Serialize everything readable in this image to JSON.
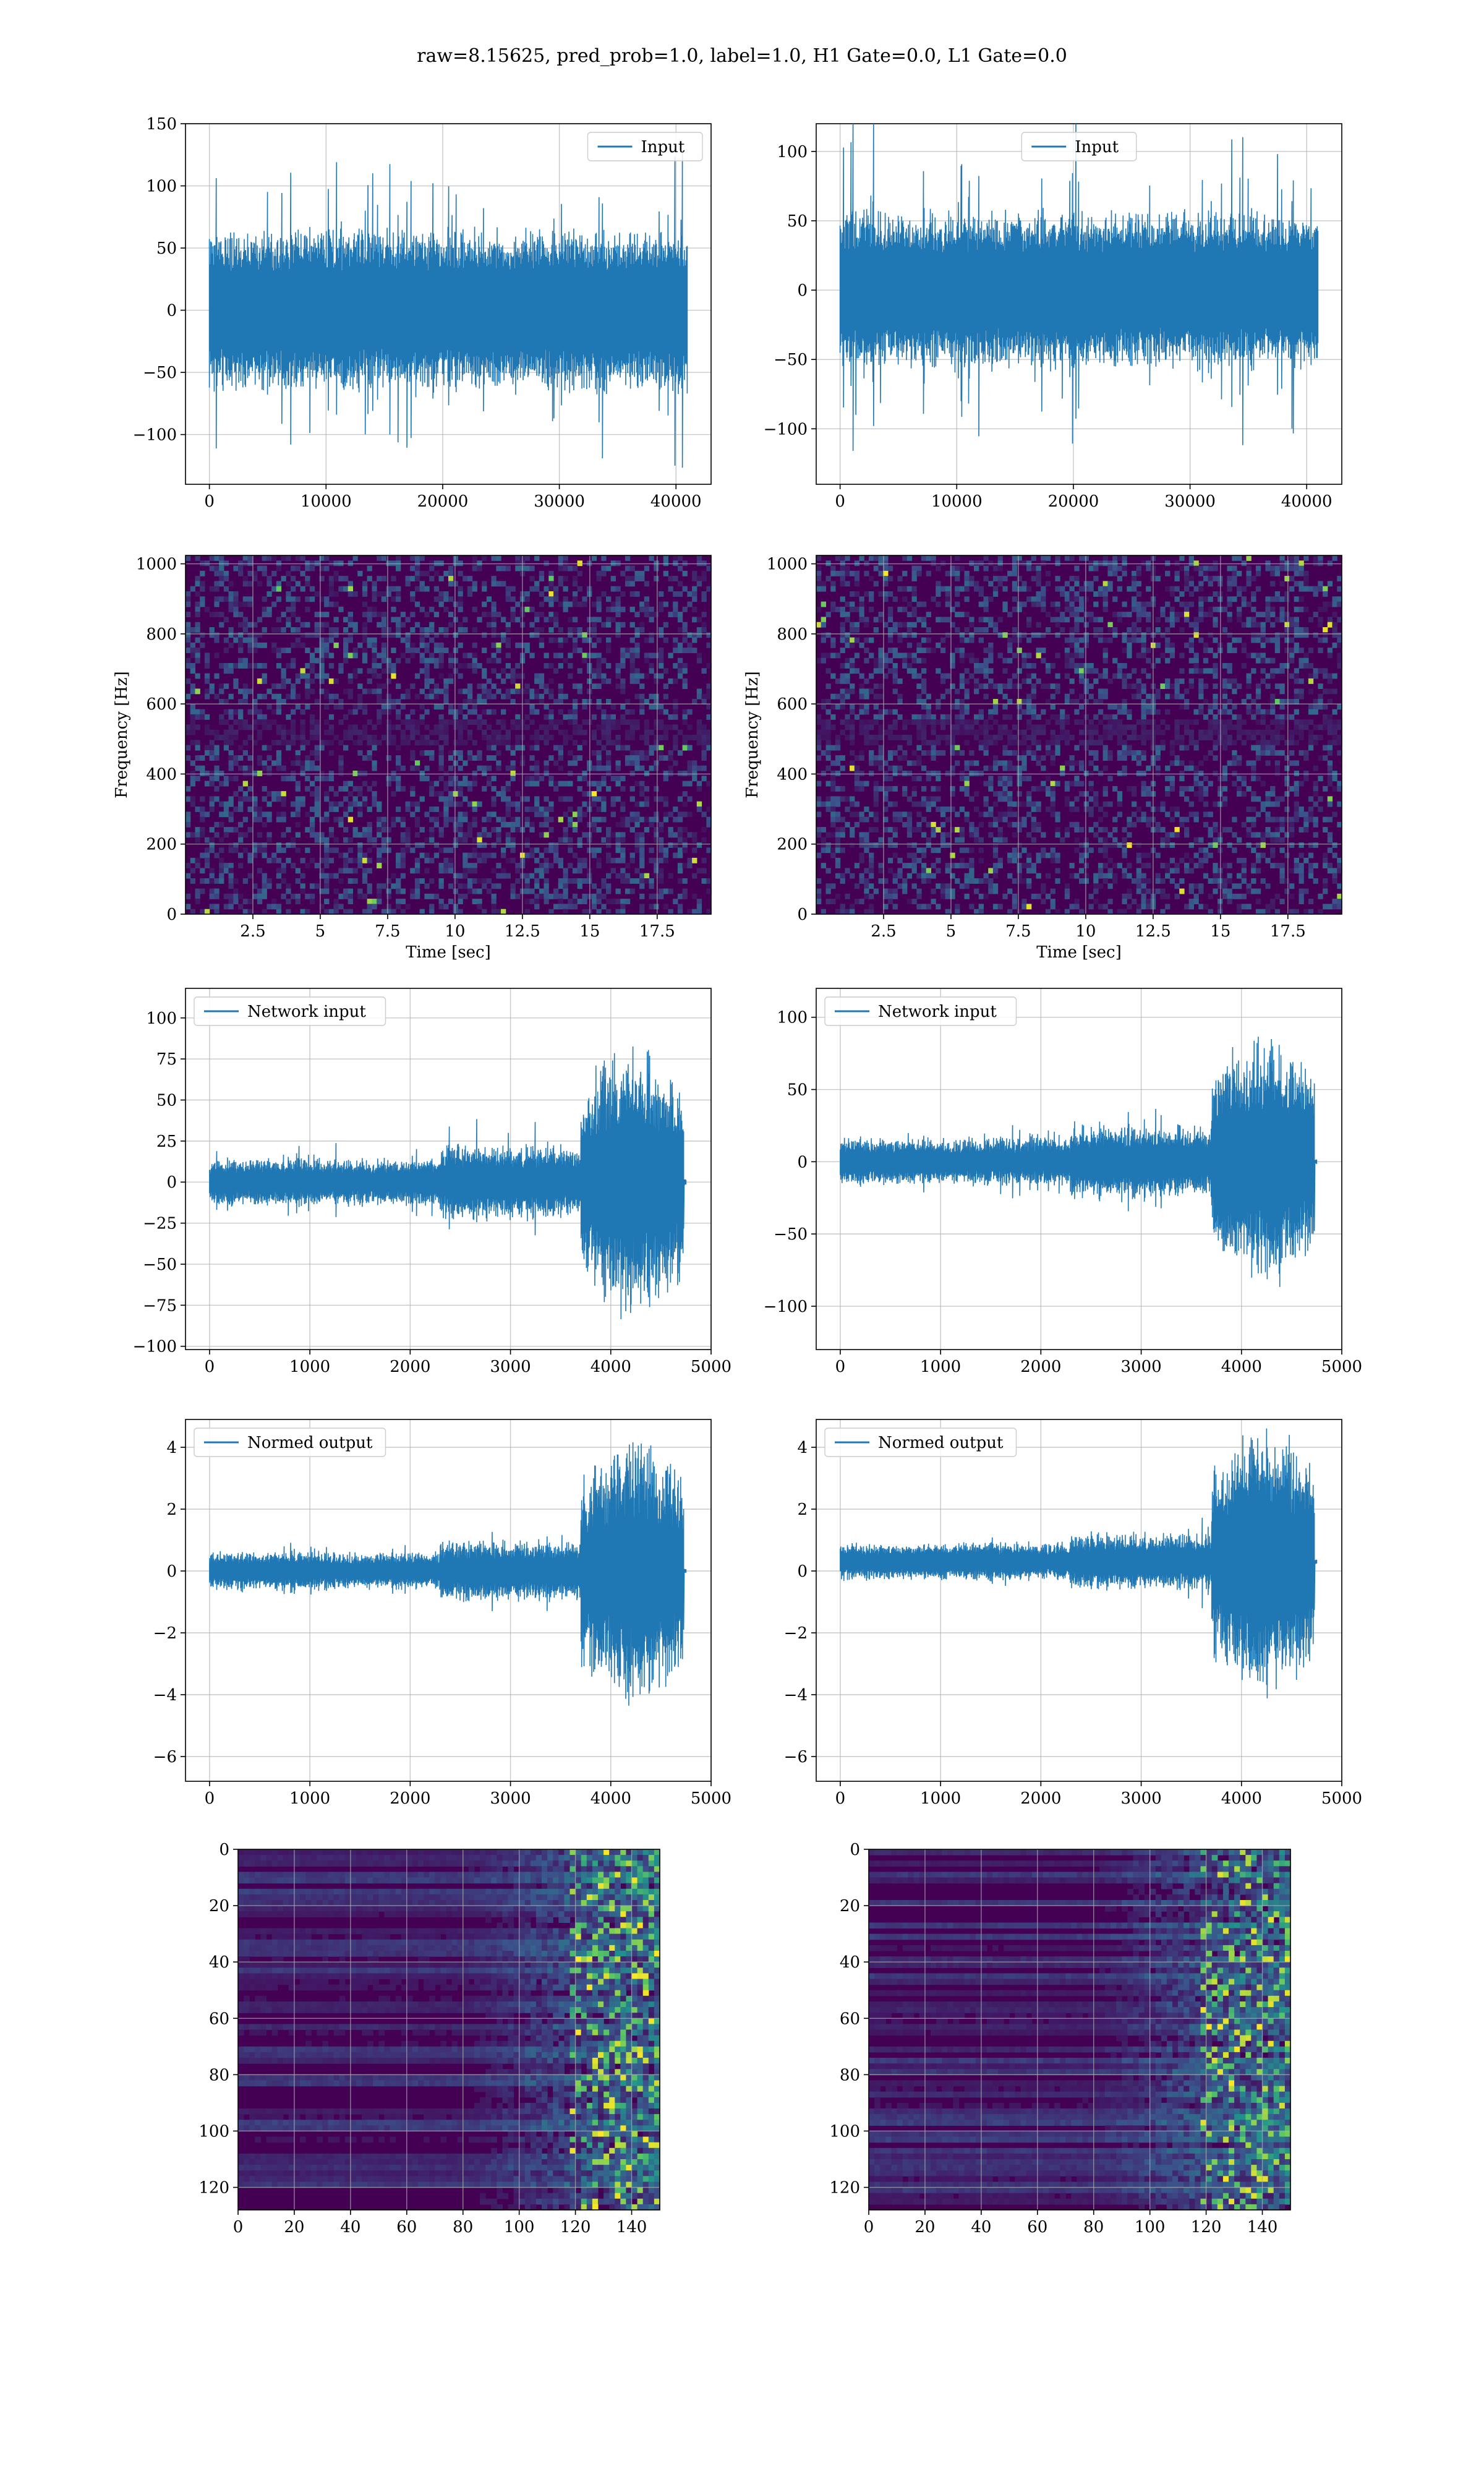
{
  "figure": {
    "suptitle": "raw=8.15625, pred_prob=1.0, label=1.0, H1 Gate=0.0, L1 Gate=0.0"
  },
  "colors": {
    "series": "#1f77b4",
    "viridis_low": "#440154",
    "viridis_mid": "#21918c",
    "viridis_high": "#fde725"
  },
  "chart_data": [
    {
      "id": "h1-input",
      "type": "line",
      "title": "",
      "xlabel": "",
      "ylabel": "",
      "series": [
        {
          "name": "Input"
        }
      ],
      "x": [
        0,
        40960
      ],
      "xlim": [
        -2048,
        43008
      ],
      "ylim": [
        -140,
        150
      ],
      "xticks": [
        0,
        10000,
        20000,
        30000,
        40000
      ],
      "yticks": [
        -100,
        -50,
        0,
        50,
        100,
        150
      ],
      "envelope": {
        "noise_amp": 60,
        "peak_amp": 140,
        "n_points": 700
      },
      "grid": true,
      "legend": "upper right"
    },
    {
      "id": "l1-input",
      "type": "line",
      "title": "",
      "xlabel": "",
      "ylabel": "",
      "series": [
        {
          "name": "Input"
        }
      ],
      "x": [
        0,
        40960
      ],
      "xlim": [
        -2048,
        43008
      ],
      "ylim": [
        -140,
        120
      ],
      "xticks": [
        0,
        10000,
        20000,
        30000,
        40000
      ],
      "yticks": [
        -100,
        -50,
        0,
        50,
        100
      ],
      "envelope": {
        "noise_amp": 52,
        "peak_amp": 130,
        "n_points": 700
      },
      "grid": true,
      "legend": "upper center"
    },
    {
      "id": "h1-spectrogram",
      "type": "heatmap",
      "title": "",
      "xlabel": "Time [sec]",
      "ylabel": "Frequency [Hz]",
      "xlim": [
        0,
        19.5
      ],
      "ylim": [
        0,
        1024
      ],
      "xticks": [
        2.5,
        5.0,
        7.5,
        10.0,
        12.5,
        15.0,
        17.5
      ],
      "yticks": [
        0,
        200,
        400,
        600,
        800,
        1000
      ],
      "colormap": "viridis",
      "grid": true
    },
    {
      "id": "l1-spectrogram",
      "type": "heatmap",
      "title": "",
      "xlabel": "Time [sec]",
      "ylabel": "Frequency [Hz]",
      "xlim": [
        0,
        19.5
      ],
      "ylim": [
        0,
        1024
      ],
      "xticks": [
        2.5,
        5.0,
        7.5,
        10.0,
        12.5,
        15.0,
        17.5
      ],
      "yticks": [
        0,
        200,
        400,
        600,
        800,
        1000
      ],
      "colormap": "viridis",
      "grid": true
    },
    {
      "id": "h1-network-input",
      "type": "line",
      "title": "",
      "xlabel": "",
      "ylabel": "",
      "series": [
        {
          "name": "Network input"
        }
      ],
      "x": [
        0,
        4750
      ],
      "xlim": [
        -240,
        5000
      ],
      "ylim": [
        -102,
        118
      ],
      "xticks": [
        0,
        1000,
        2000,
        3000,
        4000,
        5000
      ],
      "yticks": [
        -100,
        -75,
        -50,
        -25,
        0,
        25,
        50,
        75,
        100
      ],
      "envelope": {
        "base_amp": 14,
        "mid_amp": 22,
        "burst_amp": 88,
        "burst_start": 3700,
        "signal_end": 4730,
        "n_points": 800
      },
      "grid": true,
      "legend": "upper left"
    },
    {
      "id": "l1-network-input",
      "type": "line",
      "title": "",
      "xlabel": "",
      "ylabel": "",
      "series": [
        {
          "name": "Network input"
        }
      ],
      "x": [
        0,
        4750
      ],
      "xlim": [
        -240,
        5000
      ],
      "ylim": [
        -130,
        120
      ],
      "xticks": [
        0,
        1000,
        2000,
        3000,
        4000,
        5000
      ],
      "yticks": [
        -100,
        -50,
        0,
        50,
        100
      ],
      "envelope": {
        "base_amp": 16,
        "mid_amp": 24,
        "burst_amp": 95,
        "burst_start": 3700,
        "signal_end": 4730,
        "n_points": 800
      },
      "grid": true,
      "legend": "upper left"
    },
    {
      "id": "h1-normed-output",
      "type": "line",
      "title": "",
      "xlabel": "",
      "ylabel": "",
      "series": [
        {
          "name": "Normed output"
        }
      ],
      "x": [
        0,
        4750
      ],
      "xlim": [
        -240,
        5000
      ],
      "ylim": [
        -6.8,
        4.9
      ],
      "xticks": [
        0,
        1000,
        2000,
        3000,
        4000,
        5000
      ],
      "yticks": [
        -6,
        -4,
        -2,
        0,
        2,
        4
      ],
      "envelope": {
        "base_amp": 0.6,
        "mid_amp": 0.95,
        "burst_amp": 4.6,
        "burst_start": 3700,
        "signal_end": 4730,
        "n_points": 800
      },
      "grid": true,
      "legend": "upper left"
    },
    {
      "id": "l1-normed-output",
      "type": "line",
      "title": "",
      "xlabel": "",
      "ylabel": "",
      "series": [
        {
          "name": "Normed output"
        }
      ],
      "x": [
        0,
        4750
      ],
      "xlim": [
        -240,
        5000
      ],
      "ylim": [
        -6.8,
        4.9
      ],
      "xticks": [
        0,
        1000,
        2000,
        3000,
        4000,
        5000
      ],
      "yticks": [
        -6,
        -4,
        -2,
        0,
        2,
        4
      ],
      "envelope": {
        "base_amp": 0.6,
        "mid_amp": 0.9,
        "burst_amp": 4.8,
        "burst_start": 3700,
        "signal_end": 4730,
        "n_points": 800,
        "offset": 0.3
      },
      "grid": true,
      "legend": "upper left"
    },
    {
      "id": "h1-feature-map",
      "type": "heatmap",
      "title": "",
      "xlabel": "",
      "ylabel": "",
      "xlim": [
        0,
        150
      ],
      "ylim": [
        128,
        0
      ],
      "xticks": [
        0,
        20,
        40,
        60,
        80,
        100,
        120,
        140
      ],
      "yticks": [
        0,
        20,
        40,
        60,
        80,
        100,
        120
      ],
      "colormap": "viridis",
      "grid": true,
      "activity_onset": 95
    },
    {
      "id": "l1-feature-map",
      "type": "heatmap",
      "title": "",
      "xlabel": "",
      "ylabel": "",
      "xlim": [
        0,
        150
      ],
      "ylim": [
        128,
        0
      ],
      "xticks": [
        0,
        20,
        40,
        60,
        80,
        100,
        120,
        140
      ],
      "yticks": [
        0,
        20,
        40,
        60,
        80,
        100,
        120
      ],
      "colormap": "viridis",
      "grid": true,
      "activity_onset": 95
    }
  ]
}
